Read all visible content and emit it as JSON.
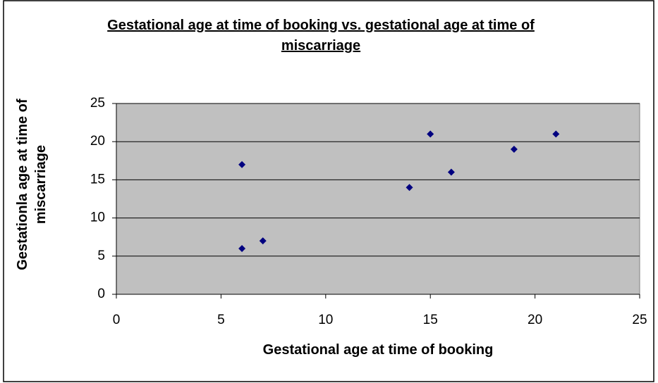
{
  "chart_data": {
    "type": "scatter",
    "title": "Gestational age at time of booking vs. gestational age at time of miscarriage",
    "x_label": "Gestational age at time of booking",
    "y_label": "Gestationla age at time of miscarriage",
    "x": [
      6,
      6,
      7,
      14,
      15,
      16,
      19,
      21
    ],
    "values": [
      17,
      6,
      7,
      14,
      21,
      16,
      19,
      21
    ],
    "color": "#000080",
    "xlim": [
      0,
      25
    ],
    "xticks": [
      0,
      5,
      10,
      15,
      20,
      25
    ],
    "ylim": [
      0,
      25
    ],
    "yticks": [
      0,
      5,
      10,
      15,
      20,
      25
    ],
    "grid": true
  }
}
